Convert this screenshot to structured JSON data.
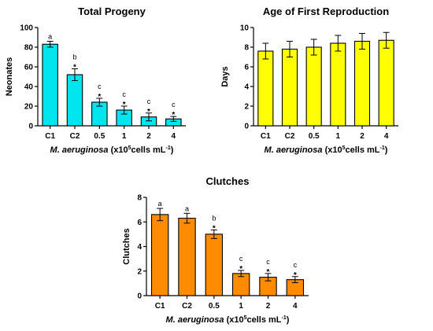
{
  "chart_data": [
    {
      "type": "bar",
      "title": "Total Progeny",
      "ylabel": "Neonates",
      "xlabel_italic": "M. aeruginosa",
      "xlabel_pre": " (x10",
      "xlabel_sup": "5",
      "xlabel_post": "cells mL",
      "xlabel_sup2": "-1",
      "xlabel_end": ")",
      "categories": [
        "C1",
        "C2",
        "0.5",
        "1",
        "2",
        "4"
      ],
      "values": [
        83,
        52,
        24,
        16,
        9,
        7
      ],
      "errors": [
        3,
        6,
        4,
        4,
        4,
        2.5
      ],
      "letters": [
        "a",
        "b",
        "c",
        "c",
        "c",
        "c"
      ],
      "stars": [
        "",
        "*",
        "*",
        "*",
        "*",
        "*"
      ],
      "ylim": [
        0,
        100
      ],
      "yticks": [
        "0",
        "20",
        "40",
        "60",
        "80",
        "100"
      ],
      "color": "#00e5ee"
    },
    {
      "type": "bar",
      "title": "Age of First Reproduction",
      "ylabel": "Days",
      "xlabel_italic": "M. aeruginosa",
      "xlabel_pre": " (x10",
      "xlabel_sup": "5",
      "xlabel_post": "cells mL",
      "xlabel_sup2": "-1",
      "xlabel_end": ")",
      "categories": [
        "C1",
        "C2",
        "0.5",
        "1",
        "2",
        "4"
      ],
      "values": [
        7.6,
        7.8,
        8.0,
        8.4,
        8.6,
        8.7
      ],
      "errors": [
        0.8,
        0.8,
        0.8,
        0.8,
        0.8,
        0.8
      ],
      "letters": [
        "",
        "",
        "",
        "",
        "",
        ""
      ],
      "stars": [
        "",
        "",
        "",
        "",
        "",
        ""
      ],
      "ylim": [
        0,
        10
      ],
      "yticks": [
        "0",
        "2",
        "4",
        "6",
        "8",
        "10"
      ],
      "color": "#ffff00"
    },
    {
      "type": "bar",
      "title": "Clutches",
      "ylabel": "Clutches",
      "xlabel_italic": "M. aeruginosa",
      "xlabel_pre": " (x10",
      "xlabel_sup": "5",
      "xlabel_post": "cells mL",
      "xlabel_sup2": "-1",
      "xlabel_end": ")",
      "categories": [
        "C1",
        "C2",
        "0.5",
        "1",
        "2",
        "4"
      ],
      "values": [
        6.6,
        6.3,
        5.0,
        1.8,
        1.5,
        1.3
      ],
      "errors": [
        0.5,
        0.4,
        0.35,
        0.25,
        0.3,
        0.25
      ],
      "letters": [
        "a",
        "a",
        "b",
        "c",
        "c",
        "c"
      ],
      "stars": [
        "",
        "",
        "*",
        "*",
        "*",
        "*"
      ],
      "ylim": [
        0,
        8
      ],
      "yticks": [
        "0",
        "2",
        "4",
        "6",
        "8"
      ],
      "color": "#ff8c00"
    }
  ]
}
